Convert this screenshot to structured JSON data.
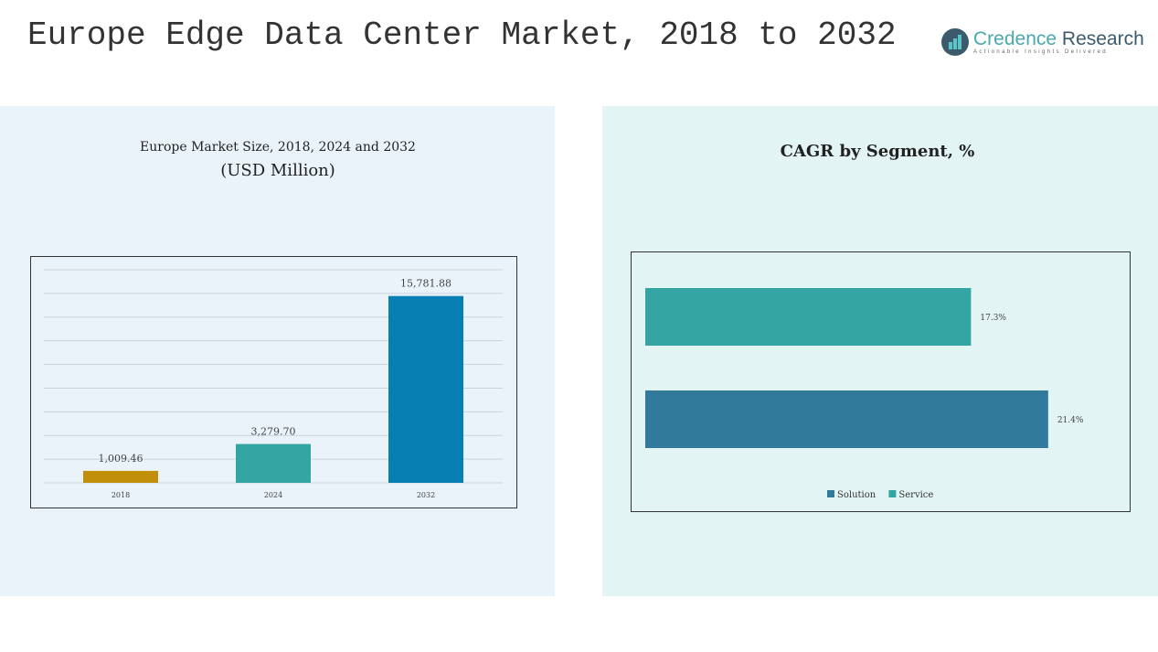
{
  "header": {
    "title": "Europe Edge Data Center Market, 2018 to 2032"
  },
  "logo": {
    "name_a": "Credence",
    "name_b": "Research",
    "tagline": "Actionable Insights Delivered"
  },
  "chart_data": [
    {
      "type": "bar",
      "title": "Europe Market Size, 2018, 2024 and 2032",
      "subtitle": "(USD Million)",
      "categories": [
        "2018",
        "2024",
        "2032"
      ],
      "values": [
        1009.46,
        3279.7,
        15781.88
      ],
      "labels": [
        "1,009.46",
        "3,279.70",
        "15,781.88"
      ],
      "colors": [
        "#c18f0a",
        "#35a5a4",
        "#077fb3"
      ],
      "ylim": [
        0,
        18000
      ],
      "grid": true
    },
    {
      "type": "bar",
      "orientation": "horizontal",
      "title": "CAGR by Segment, %",
      "categories": [
        "Service",
        "Solution"
      ],
      "values": [
        17.3,
        21.4
      ],
      "labels": [
        "17.3%",
        "21.4%"
      ],
      "colors": [
        "#35a5a4",
        "#317a9b"
      ],
      "xlim": [
        0,
        25
      ],
      "legend": [
        "Solution",
        "Service"
      ],
      "legend_position": "bottom"
    }
  ]
}
